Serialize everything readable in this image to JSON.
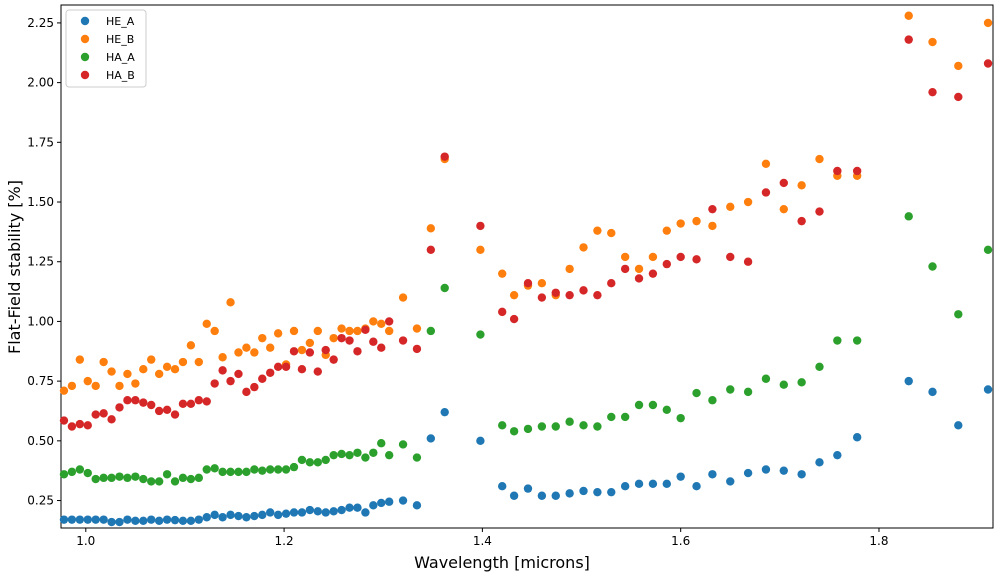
{
  "chart_data": {
    "type": "scatter",
    "xlabel": "Wavelength [microns]",
    "ylabel": "Flat-Field stability [%]",
    "xlim": [
      0.975,
      1.915
    ],
    "ylim": [
      0.135,
      2.325
    ],
    "xticks": [
      1.0,
      1.2,
      1.4,
      1.6,
      1.8
    ],
    "xtick_labels": [
      "1.0",
      "1.2",
      "1.4",
      "1.6",
      "1.8"
    ],
    "yticks": [
      0.25,
      0.5,
      0.75,
      1.0,
      1.25,
      1.5,
      1.75,
      2.0,
      2.25
    ],
    "ytick_labels": [
      "0.25",
      "0.50",
      "0.75",
      "1.00",
      "1.25",
      "1.50",
      "1.75",
      "2.00",
      "2.25"
    ],
    "grid": false,
    "legend_position": "top-left",
    "series": [
      {
        "name": "HE_A",
        "color": "#1f77b4",
        "points": [
          [
            0.978,
            0.17
          ],
          [
            0.986,
            0.17
          ],
          [
            0.994,
            0.17
          ],
          [
            1.002,
            0.17
          ],
          [
            1.01,
            0.17
          ],
          [
            1.018,
            0.17
          ],
          [
            1.026,
            0.16
          ],
          [
            1.034,
            0.16
          ],
          [
            1.042,
            0.17
          ],
          [
            1.05,
            0.165
          ],
          [
            1.058,
            0.165
          ],
          [
            1.066,
            0.17
          ],
          [
            1.074,
            0.165
          ],
          [
            1.082,
            0.17
          ],
          [
            1.09,
            0.168
          ],
          [
            1.098,
            0.165
          ],
          [
            1.106,
            0.165
          ],
          [
            1.114,
            0.17
          ],
          [
            1.122,
            0.18
          ],
          [
            1.13,
            0.19
          ],
          [
            1.138,
            0.18
          ],
          [
            1.146,
            0.19
          ],
          [
            1.154,
            0.185
          ],
          [
            1.162,
            0.18
          ],
          [
            1.17,
            0.185
          ],
          [
            1.178,
            0.19
          ],
          [
            1.186,
            0.2
          ],
          [
            1.194,
            0.19
          ],
          [
            1.202,
            0.195
          ],
          [
            1.21,
            0.2
          ],
          [
            1.218,
            0.2
          ],
          [
            1.226,
            0.21
          ],
          [
            1.234,
            0.205
          ],
          [
            1.242,
            0.2
          ],
          [
            1.25,
            0.205
          ],
          [
            1.258,
            0.21
          ],
          [
            1.266,
            0.22
          ],
          [
            1.274,
            0.22
          ],
          [
            1.282,
            0.2
          ],
          [
            1.29,
            0.23
          ],
          [
            1.298,
            0.24
          ],
          [
            1.306,
            0.245
          ],
          [
            1.32,
            0.25
          ],
          [
            1.334,
            0.23
          ],
          [
            1.348,
            0.51
          ],
          [
            1.362,
            0.62
          ],
          [
            1.398,
            0.5
          ],
          [
            1.42,
            0.31
          ],
          [
            1.432,
            0.27
          ],
          [
            1.446,
            0.3
          ],
          [
            1.46,
            0.27
          ],
          [
            1.474,
            0.27
          ],
          [
            1.488,
            0.28
          ],
          [
            1.502,
            0.29
          ],
          [
            1.516,
            0.285
          ],
          [
            1.53,
            0.285
          ],
          [
            1.544,
            0.31
          ],
          [
            1.558,
            0.32
          ],
          [
            1.572,
            0.32
          ],
          [
            1.586,
            0.32
          ],
          [
            1.6,
            0.35
          ],
          [
            1.616,
            0.31
          ],
          [
            1.632,
            0.36
          ],
          [
            1.65,
            0.33
          ],
          [
            1.668,
            0.365
          ],
          [
            1.686,
            0.38
          ],
          [
            1.704,
            0.375
          ],
          [
            1.722,
            0.36
          ],
          [
            1.74,
            0.41
          ],
          [
            1.758,
            0.44
          ],
          [
            1.778,
            0.515
          ],
          [
            1.83,
            0.75
          ],
          [
            1.854,
            0.705
          ],
          [
            1.88,
            0.565
          ],
          [
            1.91,
            0.715
          ]
        ]
      },
      {
        "name": "HE_B",
        "color": "#ff7f0e",
        "points": [
          [
            0.978,
            0.71
          ],
          [
            0.986,
            0.73
          ],
          [
            0.994,
            0.84
          ],
          [
            1.002,
            0.75
          ],
          [
            1.01,
            0.73
          ],
          [
            1.018,
            0.83
          ],
          [
            1.026,
            0.79
          ],
          [
            1.034,
            0.73
          ],
          [
            1.042,
            0.78
          ],
          [
            1.05,
            0.74
          ],
          [
            1.058,
            0.8
          ],
          [
            1.066,
            0.84
          ],
          [
            1.074,
            0.78
          ],
          [
            1.082,
            0.81
          ],
          [
            1.09,
            0.8
          ],
          [
            1.098,
            0.83
          ],
          [
            1.106,
            0.9
          ],
          [
            1.114,
            0.83
          ],
          [
            1.122,
            0.99
          ],
          [
            1.13,
            0.96
          ],
          [
            1.138,
            0.85
          ],
          [
            1.146,
            1.08
          ],
          [
            1.154,
            0.87
          ],
          [
            1.162,
            0.89
          ],
          [
            1.17,
            0.87
          ],
          [
            1.178,
            0.93
          ],
          [
            1.186,
            0.89
          ],
          [
            1.194,
            0.95
          ],
          [
            1.202,
            0.82
          ],
          [
            1.21,
            0.96
          ],
          [
            1.218,
            0.88
          ],
          [
            1.226,
            0.91
          ],
          [
            1.234,
            0.96
          ],
          [
            1.242,
            0.86
          ],
          [
            1.25,
            0.93
          ],
          [
            1.258,
            0.97
          ],
          [
            1.266,
            0.96
          ],
          [
            1.274,
            0.96
          ],
          [
            1.282,
            0.97
          ],
          [
            1.29,
            1.0
          ],
          [
            1.298,
            0.99
          ],
          [
            1.306,
            0.96
          ],
          [
            1.32,
            1.1
          ],
          [
            1.334,
            0.97
          ],
          [
            1.348,
            1.39
          ],
          [
            1.362,
            1.68
          ],
          [
            1.398,
            1.3
          ],
          [
            1.42,
            1.2
          ],
          [
            1.432,
            1.11
          ],
          [
            1.446,
            1.15
          ],
          [
            1.46,
            1.16
          ],
          [
            1.474,
            1.11
          ],
          [
            1.488,
            1.22
          ],
          [
            1.502,
            1.31
          ],
          [
            1.516,
            1.38
          ],
          [
            1.53,
            1.37
          ],
          [
            1.544,
            1.27
          ],
          [
            1.558,
            1.22
          ],
          [
            1.572,
            1.27
          ],
          [
            1.586,
            1.38
          ],
          [
            1.6,
            1.41
          ],
          [
            1.616,
            1.42
          ],
          [
            1.632,
            1.4
          ],
          [
            1.65,
            1.48
          ],
          [
            1.668,
            1.5
          ],
          [
            1.686,
            1.66
          ],
          [
            1.704,
            1.47
          ],
          [
            1.722,
            1.57
          ],
          [
            1.74,
            1.68
          ],
          [
            1.758,
            1.61
          ],
          [
            1.778,
            1.61
          ],
          [
            1.83,
            2.28
          ],
          [
            1.854,
            2.17
          ],
          [
            1.88,
            2.07
          ],
          [
            1.91,
            2.25
          ]
        ]
      },
      {
        "name": "HA_A",
        "color": "#2ca02c",
        "points": [
          [
            0.978,
            0.36
          ],
          [
            0.986,
            0.37
          ],
          [
            0.994,
            0.38
          ],
          [
            1.002,
            0.365
          ],
          [
            1.01,
            0.34
          ],
          [
            1.018,
            0.345
          ],
          [
            1.026,
            0.345
          ],
          [
            1.034,
            0.35
          ],
          [
            1.042,
            0.345
          ],
          [
            1.05,
            0.35
          ],
          [
            1.058,
            0.34
          ],
          [
            1.066,
            0.33
          ],
          [
            1.074,
            0.33
          ],
          [
            1.082,
            0.36
          ],
          [
            1.09,
            0.33
          ],
          [
            1.098,
            0.345
          ],
          [
            1.106,
            0.34
          ],
          [
            1.114,
            0.345
          ],
          [
            1.122,
            0.38
          ],
          [
            1.13,
            0.385
          ],
          [
            1.138,
            0.37
          ],
          [
            1.146,
            0.37
          ],
          [
            1.154,
            0.37
          ],
          [
            1.162,
            0.37
          ],
          [
            1.17,
            0.38
          ],
          [
            1.178,
            0.375
          ],
          [
            1.186,
            0.38
          ],
          [
            1.194,
            0.38
          ],
          [
            1.202,
            0.38
          ],
          [
            1.21,
            0.39
          ],
          [
            1.218,
            0.42
          ],
          [
            1.226,
            0.41
          ],
          [
            1.234,
            0.41
          ],
          [
            1.242,
            0.42
          ],
          [
            1.25,
            0.44
          ],
          [
            1.258,
            0.445
          ],
          [
            1.266,
            0.44
          ],
          [
            1.274,
            0.45
          ],
          [
            1.282,
            0.43
          ],
          [
            1.29,
            0.45
          ],
          [
            1.298,
            0.49
          ],
          [
            1.306,
            0.44
          ],
          [
            1.32,
            0.485
          ],
          [
            1.334,
            0.43
          ],
          [
            1.348,
            0.96
          ],
          [
            1.362,
            1.14
          ],
          [
            1.398,
            0.945
          ],
          [
            1.42,
            0.565
          ],
          [
            1.432,
            0.54
          ],
          [
            1.446,
            0.55
          ],
          [
            1.46,
            0.56
          ],
          [
            1.474,
            0.56
          ],
          [
            1.488,
            0.58
          ],
          [
            1.502,
            0.565
          ],
          [
            1.516,
            0.56
          ],
          [
            1.53,
            0.6
          ],
          [
            1.544,
            0.6
          ],
          [
            1.558,
            0.65
          ],
          [
            1.572,
            0.65
          ],
          [
            1.586,
            0.63
          ],
          [
            1.6,
            0.595
          ],
          [
            1.616,
            0.7
          ],
          [
            1.632,
            0.67
          ],
          [
            1.65,
            0.715
          ],
          [
            1.668,
            0.705
          ],
          [
            1.686,
            0.76
          ],
          [
            1.704,
            0.735
          ],
          [
            1.722,
            0.745
          ],
          [
            1.74,
            0.81
          ],
          [
            1.758,
            0.92
          ],
          [
            1.778,
            0.92
          ],
          [
            1.83,
            1.44
          ],
          [
            1.854,
            1.23
          ],
          [
            1.88,
            1.03
          ],
          [
            1.91,
            1.3
          ]
        ]
      },
      {
        "name": "HA_B",
        "color": "#d62728",
        "points": [
          [
            0.978,
            0.585
          ],
          [
            0.986,
            0.56
          ],
          [
            0.994,
            0.57
          ],
          [
            1.002,
            0.565
          ],
          [
            1.01,
            0.61
          ],
          [
            1.018,
            0.615
          ],
          [
            1.026,
            0.59
          ],
          [
            1.034,
            0.64
          ],
          [
            1.042,
            0.67
          ],
          [
            1.05,
            0.67
          ],
          [
            1.058,
            0.66
          ],
          [
            1.066,
            0.65
          ],
          [
            1.074,
            0.625
          ],
          [
            1.082,
            0.63
          ],
          [
            1.09,
            0.61
          ],
          [
            1.098,
            0.655
          ],
          [
            1.106,
            0.655
          ],
          [
            1.114,
            0.67
          ],
          [
            1.122,
            0.665
          ],
          [
            1.13,
            0.74
          ],
          [
            1.138,
            0.795
          ],
          [
            1.146,
            0.75
          ],
          [
            1.154,
            0.78
          ],
          [
            1.162,
            0.705
          ],
          [
            1.17,
            0.725
          ],
          [
            1.178,
            0.76
          ],
          [
            1.186,
            0.785
          ],
          [
            1.194,
            0.81
          ],
          [
            1.202,
            0.81
          ],
          [
            1.21,
            0.875
          ],
          [
            1.218,
            0.8
          ],
          [
            1.226,
            0.87
          ],
          [
            1.234,
            0.79
          ],
          [
            1.242,
            0.88
          ],
          [
            1.25,
            0.84
          ],
          [
            1.258,
            0.93
          ],
          [
            1.266,
            0.92
          ],
          [
            1.274,
            0.875
          ],
          [
            1.282,
            0.965
          ],
          [
            1.29,
            0.915
          ],
          [
            1.298,
            0.89
          ],
          [
            1.306,
            1.0
          ],
          [
            1.32,
            0.92
          ],
          [
            1.334,
            0.885
          ],
          [
            1.348,
            1.3
          ],
          [
            1.362,
            1.69
          ],
          [
            1.398,
            1.4
          ],
          [
            1.42,
            1.04
          ],
          [
            1.432,
            1.01
          ],
          [
            1.446,
            1.16
          ],
          [
            1.46,
            1.1
          ],
          [
            1.474,
            1.12
          ],
          [
            1.488,
            1.11
          ],
          [
            1.502,
            1.13
          ],
          [
            1.516,
            1.11
          ],
          [
            1.53,
            1.16
          ],
          [
            1.544,
            1.22
          ],
          [
            1.558,
            1.18
          ],
          [
            1.572,
            1.2
          ],
          [
            1.586,
            1.24
          ],
          [
            1.6,
            1.27
          ],
          [
            1.616,
            1.26
          ],
          [
            1.632,
            1.47
          ],
          [
            1.65,
            1.27
          ],
          [
            1.668,
            1.25
          ],
          [
            1.686,
            1.54
          ],
          [
            1.704,
            1.58
          ],
          [
            1.722,
            1.42
          ],
          [
            1.74,
            1.46
          ],
          [
            1.758,
            1.63
          ],
          [
            1.778,
            1.63
          ],
          [
            1.83,
            2.18
          ],
          [
            1.854,
            1.96
          ],
          [
            1.88,
            1.94
          ],
          [
            1.91,
            2.08
          ]
        ]
      }
    ]
  }
}
